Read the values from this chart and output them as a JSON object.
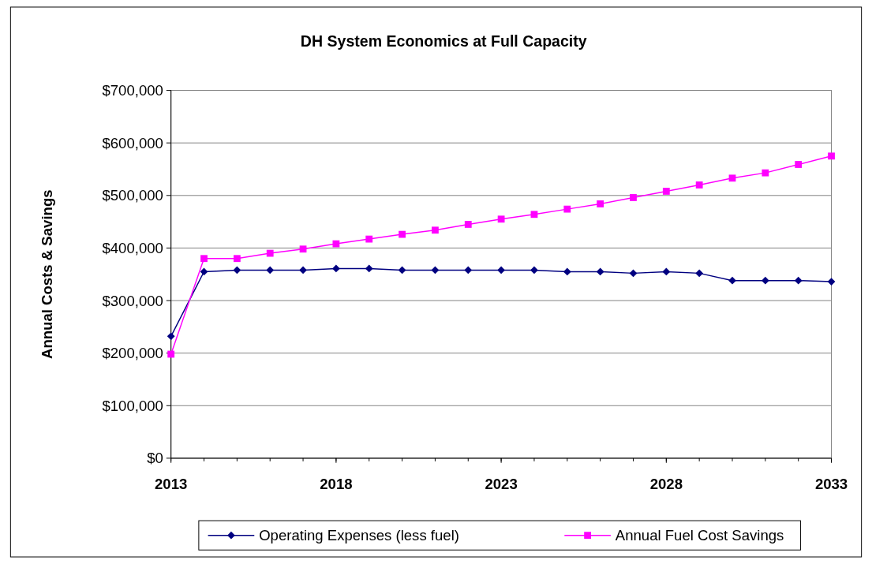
{
  "chart_data": {
    "type": "line",
    "title": "DH System Economics at Full Capacity",
    "ylabel": "Annual Costs & Savings",
    "x": [
      2013,
      2014,
      2015,
      2016,
      2017,
      2018,
      2019,
      2020,
      2021,
      2022,
      2023,
      2024,
      2025,
      2026,
      2027,
      2028,
      2029,
      2030,
      2031,
      2032,
      2033
    ],
    "series": [
      {
        "name": "Operating Expenses (less fuel)",
        "color": "#000080",
        "marker": "diamond",
        "values": [
          232000,
          355000,
          358000,
          358000,
          358000,
          361000,
          361000,
          358000,
          358000,
          358000,
          358000,
          358000,
          355000,
          355000,
          352000,
          355000,
          352000,
          338000,
          338000,
          338000,
          336000
        ]
      },
      {
        "name": "Annual Fuel Cost Savings",
        "color": "#ff00ff",
        "marker": "square",
        "values": [
          198000,
          380000,
          380000,
          390000,
          398000,
          408000,
          417000,
          426000,
          434000,
          445000,
          455000,
          464000,
          474000,
          484000,
          496000,
          508000,
          520000,
          533000,
          543000,
          559000,
          575000
        ]
      }
    ],
    "xlim": [
      2013,
      2033
    ],
    "xticks": [
      2013,
      2018,
      2023,
      2028,
      2033
    ],
    "ylim": [
      0,
      700000
    ],
    "yticks": [
      {
        "value": 0,
        "label": "$0"
      },
      {
        "value": 100000,
        "label": "$100,000"
      },
      {
        "value": 200000,
        "label": "$200,000"
      },
      {
        "value": 300000,
        "label": "$300,000"
      },
      {
        "value": 400000,
        "label": "$400,000"
      },
      {
        "value": 500000,
        "label": "$500,000"
      },
      {
        "value": 600000,
        "label": "$600,000"
      },
      {
        "value": 700000,
        "label": "$700,000"
      }
    ],
    "grid": "y",
    "legend": "bottom",
    "line_style": "solid"
  }
}
